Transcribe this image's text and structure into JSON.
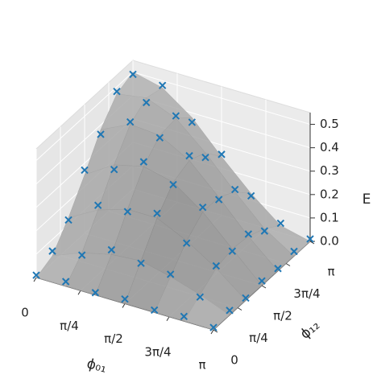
{
  "chart_data": {
    "type": "surface3d",
    "xlabel": "ϕ₀₁",
    "ylabel": "ϕ₁₂",
    "zlabel": "E",
    "xlim": [
      0,
      3.1416
    ],
    "ylim": [
      0,
      3.1416
    ],
    "zlim": [
      0,
      0.55
    ],
    "xticks": [
      0,
      {
        "value": 0.7854,
        "label": "π/4"
      },
      {
        "value": 1.5708,
        "label": "π/2"
      },
      {
        "value": 2.3562,
        "label": "3π/4"
      },
      {
        "value": 3.1416,
        "label": "π"
      }
    ],
    "yticks": [
      0,
      {
        "value": 0.7854,
        "label": "π/4"
      },
      {
        "value": 1.5708,
        "label": "π/2"
      },
      {
        "value": 2.3562,
        "label": "3π/4"
      },
      {
        "value": 3.1416,
        "label": "π"
      }
    ],
    "zticks": [
      {
        "value": 0,
        "label": "0.0"
      },
      0.1,
      0.2,
      0.3,
      0.4,
      0.5
    ],
    "grid": true,
    "surface": {
      "color": "#b4b4b4",
      "x": [
        0,
        0.5236,
        1.0472,
        1.5708,
        2.0944,
        2.618,
        3.1416
      ],
      "y": [
        0,
        0.5236,
        1.0472,
        1.5708,
        2.0944,
        2.618,
        3.1416
      ],
      "z": [
        [
          0,
          0.03,
          0.13,
          0.25,
          0.38,
          0.47,
          0.5
        ],
        [
          0,
          0.08,
          0.2,
          0.33,
          0.44,
          0.49,
          0.47
        ],
        [
          0,
          0.11,
          0.24,
          0.36,
          0.43,
          0.44,
          0.38
        ],
        [
          0,
          0.12,
          0.24,
          0.33,
          0.36,
          0.33,
          0.25
        ],
        [
          0,
          0.09,
          0.18,
          0.24,
          0.24,
          0.2,
          0.13
        ],
        [
          0,
          0.05,
          0.1,
          0.12,
          0.11,
          0.08,
          0.03
        ],
        [
          0,
          0,
          0,
          0,
          0,
          0,
          0
        ]
      ]
    },
    "scatter": {
      "color": "#1f77b4",
      "x": [
        0,
        0,
        0,
        0,
        0,
        0,
        0,
        0.5236,
        0.5236,
        0.5236,
        0.5236,
        0.5236,
        0.5236,
        0.5236,
        1.0472,
        1.0472,
        1.0472,
        1.0472,
        1.0472,
        1.0472,
        1.0472,
        1.5708,
        1.5708,
        1.5708,
        1.5708,
        1.5708,
        1.5708,
        1.5708,
        2.0944,
        2.0944,
        2.0944,
        2.0944,
        2.0944,
        2.0944,
        2.0944,
        2.618,
        2.618,
        2.618,
        2.618,
        2.618,
        2.618,
        2.618,
        3.1416,
        3.1416,
        3.1416,
        3.1416,
        3.1416,
        3.1416,
        3.1416
      ],
      "y": [
        0,
        0.5236,
        1.0472,
        1.5708,
        2.0944,
        2.618,
        3.1416,
        0,
        0.5236,
        1.0472,
        1.5708,
        2.0944,
        2.618,
        3.1416,
        0,
        0.5236,
        1.0472,
        1.5708,
        2.0944,
        2.618,
        3.1416,
        0,
        0.5236,
        1.0472,
        1.5708,
        2.0944,
        2.618,
        3.1416,
        0,
        0.5236,
        1.0472,
        1.5708,
        2.0944,
        2.618,
        3.1416,
        0,
        0.5236,
        1.0472,
        1.5708,
        2.0944,
        2.618,
        3.1416,
        0,
        0.5236,
        1.0472,
        1.5708,
        2.0944,
        2.618,
        3.1416
      ],
      "z": [
        0.01,
        0.05,
        0.12,
        0.27,
        0.36,
        0.48,
        0.49,
        0.02,
        0.07,
        0.22,
        0.31,
        0.45,
        0.47,
        0.48,
        0.01,
        0.13,
        0.23,
        0.38,
        0.42,
        0.45,
        0.36,
        0.02,
        0.11,
        0.26,
        0.32,
        0.38,
        0.31,
        0.26,
        0.01,
        0.1,
        0.17,
        0.26,
        0.23,
        0.21,
        0.12,
        0.02,
        0.04,
        0.11,
        0.11,
        0.12,
        0.07,
        0.04,
        0.01,
        0.02,
        0.01,
        0.02,
        0.01,
        0.02,
        0.01
      ]
    }
  }
}
